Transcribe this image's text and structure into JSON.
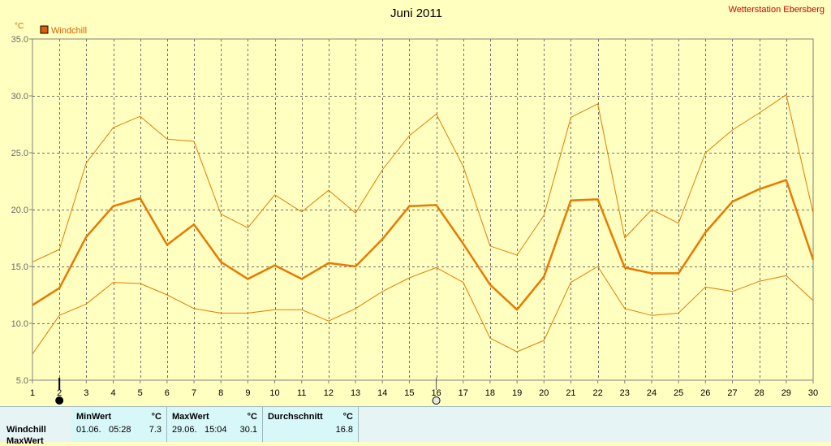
{
  "header": {
    "title": "Juni 2011",
    "station": "Wetterstation Ebersberg",
    "unit": "°C"
  },
  "legend": {
    "label": "Windchill",
    "color": "#e06000"
  },
  "colors": {
    "background": "#ffffc0",
    "series": "#e87a00",
    "grid": "#6f6f6f"
  },
  "markers": {
    "start_day": 2,
    "end_day": 16
  },
  "chart_data": {
    "type": "line",
    "title": "Juni 2011",
    "xlabel": "",
    "ylabel": "°C",
    "ylim": [
      5,
      35
    ],
    "yticks": [
      "5.0",
      "10.0",
      "15.0",
      "20.0",
      "25.0",
      "30.0",
      "35.0"
    ],
    "grid": true,
    "legend_position": "top-left",
    "x": [
      1,
      2,
      3,
      4,
      5,
      6,
      7,
      8,
      9,
      10,
      11,
      12,
      13,
      14,
      15,
      16,
      17,
      18,
      19,
      20,
      21,
      22,
      23,
      24,
      25,
      26,
      27,
      28,
      29,
      30
    ],
    "series": [
      {
        "name": "Windchill",
        "role": "average",
        "values": [
          11.6,
          13.1,
          17.6,
          20.3,
          21.0,
          16.9,
          18.7,
          15.4,
          13.9,
          15.1,
          13.9,
          15.3,
          15.0,
          17.4,
          20.3,
          20.4,
          17.0,
          13.4,
          11.2,
          14.1,
          20.8,
          20.9,
          14.9,
          14.4,
          14.4,
          18.0,
          20.7,
          21.8,
          22.6,
          15.6
        ]
      },
      {
        "role": "max",
        "values": [
          15.4,
          16.5,
          24.1,
          27.2,
          28.2,
          26.2,
          26.0,
          19.6,
          18.4,
          21.3,
          19.8,
          21.7,
          19.7,
          23.5,
          26.5,
          28.4,
          23.8,
          16.8,
          16.0,
          19.5,
          28.1,
          29.3,
          17.5,
          20.0,
          18.8,
          25.0,
          27.0,
          28.5,
          30.1,
          19.7
        ]
      },
      {
        "role": "min",
        "values": [
          7.3,
          10.7,
          11.7,
          13.6,
          13.5,
          12.5,
          11.3,
          10.9,
          10.9,
          11.2,
          11.2,
          10.2,
          11.3,
          12.8,
          14.0,
          14.9,
          13.6,
          8.7,
          7.5,
          8.5,
          13.6,
          15.0,
          11.3,
          10.7,
          10.9,
          13.2,
          12.8,
          13.7,
          14.2,
          12.0
        ]
      }
    ]
  },
  "stats": {
    "row_label": "Windchill",
    "next_row_label": "MaxWert",
    "min": {
      "header": "MinWert",
      "unit": "°C",
      "date": "01.06.",
      "time": "05:28",
      "value": "7.3"
    },
    "max": {
      "header": "MaxWert",
      "unit": "°C",
      "date": "29.06.",
      "time": "15:04",
      "value": "30.1"
    },
    "avg": {
      "header": "Durchschnitt",
      "unit": "°C",
      "value": "16.8"
    }
  }
}
